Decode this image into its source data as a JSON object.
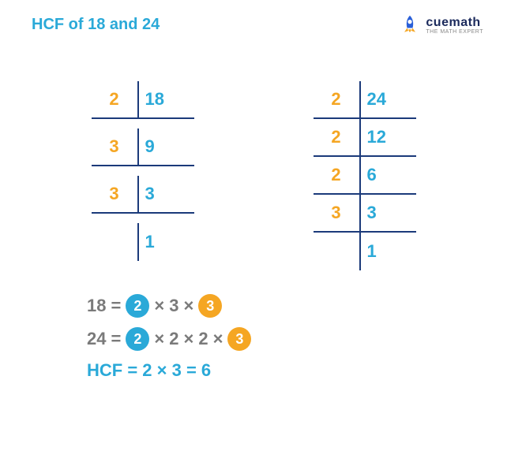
{
  "title": "HCF of 18 and 24",
  "logo": {
    "brand": "cuemath",
    "tagline": "THE MATH EXPERT"
  },
  "colors": {
    "title": "#2aa9d8",
    "divisor": "#f5a623",
    "dividend": "#2aa9d8",
    "border": "#1b3a7a",
    "plain": "#7a7a7a",
    "chip_cyan": "#2aa9d8",
    "chip_orange": "#f5a623",
    "result": "#2aa9d8",
    "logo_text": "#1b2a5c"
  },
  "tables": [
    {
      "rows": [
        {
          "divisor": "2",
          "dividend": "18"
        },
        {
          "divisor": "3",
          "dividend": "9"
        },
        {
          "divisor": "3",
          "dividend": "3"
        },
        {
          "divisor": "",
          "dividend": "1"
        }
      ]
    },
    {
      "rows": [
        {
          "divisor": "2",
          "dividend": "24"
        },
        {
          "divisor": "2",
          "dividend": "12"
        },
        {
          "divisor": "2",
          "dividend": "6"
        },
        {
          "divisor": "3",
          "dividend": "3"
        },
        {
          "divisor": "",
          "dividend": "1"
        }
      ]
    }
  ],
  "equations": {
    "line1": {
      "lhs": "18",
      "factors": [
        {
          "val": "2",
          "chip": "cyan"
        },
        {
          "val": "3",
          "chip": null
        },
        {
          "val": "3",
          "chip": "orange"
        }
      ]
    },
    "line2": {
      "lhs": "24",
      "factors": [
        {
          "val": "2",
          "chip": "cyan"
        },
        {
          "val": "2",
          "chip": null
        },
        {
          "val": "2",
          "chip": null
        },
        {
          "val": "3",
          "chip": "orange"
        }
      ]
    },
    "result": "HCF = 2 × 3 = 6"
  }
}
